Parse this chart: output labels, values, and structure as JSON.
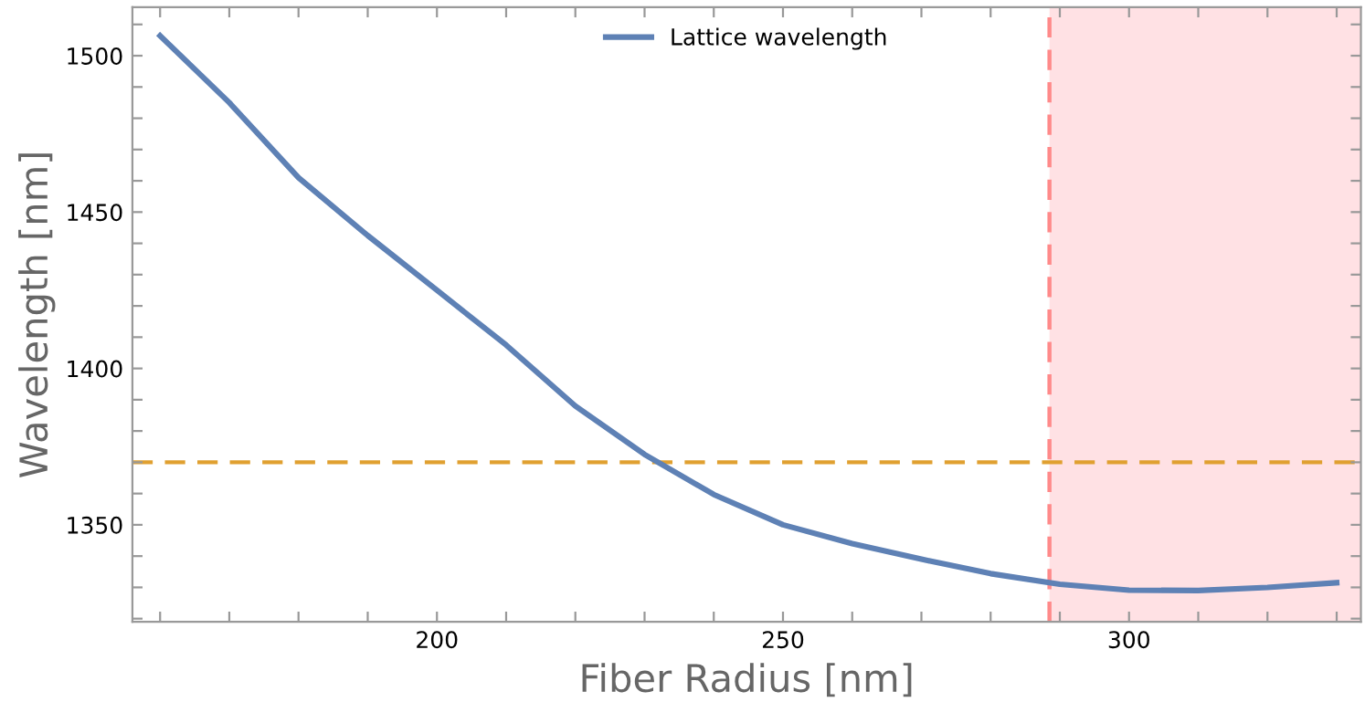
{
  "chart_data": {
    "type": "line",
    "xlabel": "Fiber Radius [nm]",
    "ylabel": "Wavelength [nm]",
    "x": [
      160,
      170,
      180,
      190,
      200,
      210,
      220,
      230,
      240,
      250,
      260,
      270,
      280,
      290,
      300,
      310,
      320,
      330
    ],
    "series": [
      {
        "name": "Lattice wavelength",
        "color": "#5e81b5",
        "values": [
          1506.4,
          1485,
          1461,
          1442.5,
          1425,
          1407.5,
          1388,
          1372.5,
          1359.7,
          1350,
          1344,
          1339,
          1334.4,
          1331,
          1329.1,
          1329,
          1330,
          1331.5
        ]
      }
    ],
    "xlim": [
      156,
      333.5
    ],
    "ylim": [
      1319,
      1515.5
    ],
    "xticks": [
      {
        "value": 160,
        "label": null
      },
      {
        "value": 170,
        "label": null
      },
      {
        "value": 180,
        "label": null
      },
      {
        "value": 190,
        "label": null
      },
      200,
      {
        "value": 210,
        "label": null
      },
      {
        "value": 220,
        "label": null
      },
      {
        "value": 230,
        "label": null
      },
      {
        "value": 240,
        "label": null
      },
      250,
      {
        "value": 260,
        "label": null
      },
      {
        "value": 270,
        "label": null
      },
      {
        "value": 280,
        "label": null
      },
      {
        "value": 290,
        "label": null
      },
      300,
      {
        "value": 310,
        "label": null
      },
      {
        "value": 320,
        "label": null
      },
      {
        "value": 330,
        "label": null
      }
    ],
    "yticks": [
      {
        "value": 1320,
        "label": null
      },
      {
        "value": 1330,
        "label": null
      },
      {
        "value": 1340,
        "label": null
      },
      1350,
      {
        "value": 1360,
        "label": null
      },
      {
        "value": 1370,
        "label": null
      },
      {
        "value": 1380,
        "label": null
      },
      {
        "value": 1390,
        "label": null
      },
      1400,
      {
        "value": 1410,
        "label": null
      },
      {
        "value": 1420,
        "label": null
      },
      {
        "value": 1430,
        "label": null
      },
      {
        "value": 1440,
        "label": null
      },
      1450,
      {
        "value": 1460,
        "label": null
      },
      {
        "value": 1470,
        "label": null
      },
      {
        "value": 1480,
        "label": null
      },
      {
        "value": 1490,
        "label": null
      },
      1500,
      {
        "value": 1510,
        "label": null
      }
    ],
    "ref_lines": [
      {
        "axis": "y",
        "value": 1370,
        "color": "#e0a030",
        "line_style": "dashed"
      },
      {
        "axis": "x",
        "value": 288.5,
        "color": "#ff8a8a",
        "line_style": "dashed"
      }
    ],
    "bands": [
      {
        "axis": "x",
        "from": 288.5,
        "to": 333.5,
        "color": "#ffe1e4"
      }
    ],
    "legend": "top",
    "grid": false,
    "marker": "none",
    "line_style": "solid"
  }
}
